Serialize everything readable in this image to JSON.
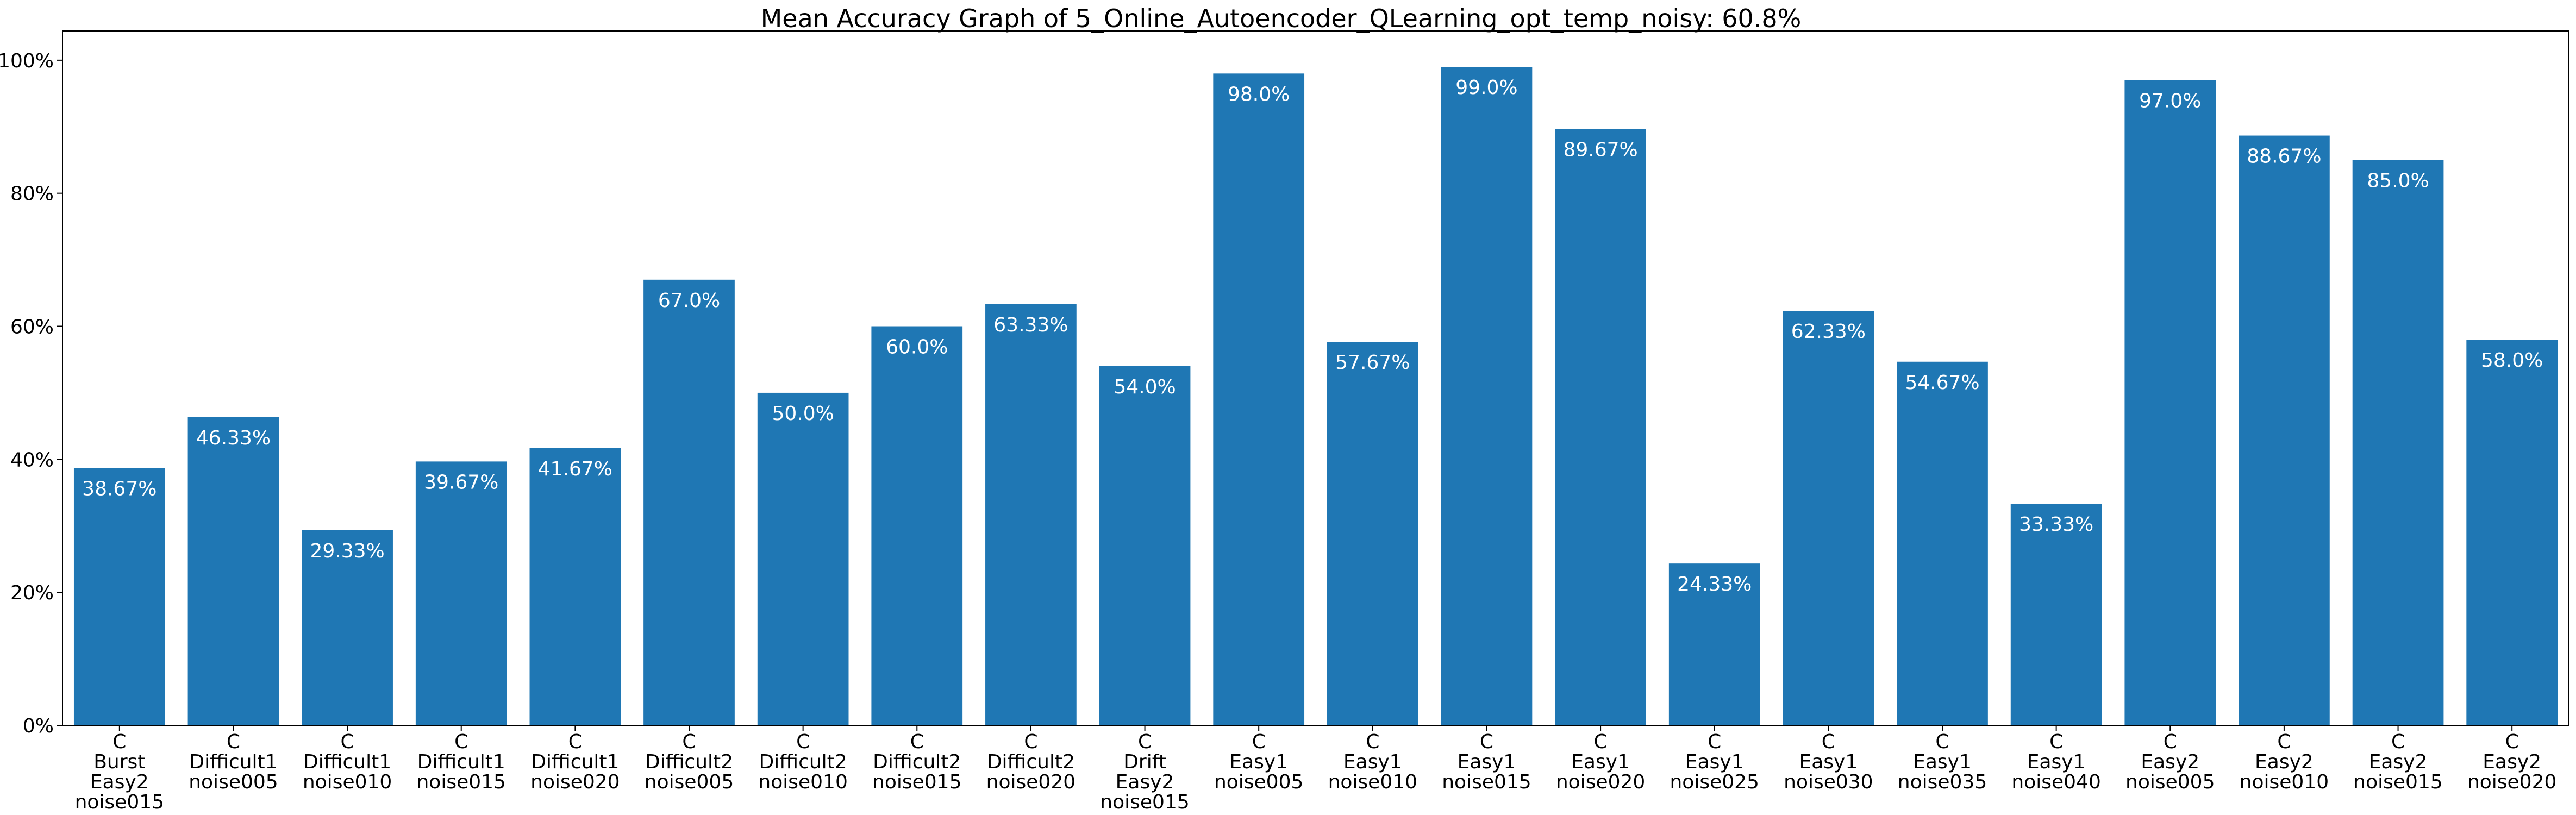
{
  "chart_data": {
    "type": "bar",
    "title": "Mean Accuracy Graph of 5_Online_Autoencoder_QLearning_opt_temp_noisy: 60.8%",
    "xlabel": "",
    "ylabel": "",
    "ylim": [
      0,
      100
    ],
    "y_ticks": [
      "0%",
      "20%",
      "40%",
      "60%",
      "80%",
      "100%"
    ],
    "y_tick_values": [
      0,
      20,
      40,
      60,
      80,
      100
    ],
    "grid": false,
    "bar_color": "#1f77b4",
    "label_color": "#ffffff",
    "categories": [
      "C\nBurst\nEasy2\nnoise015",
      "C\nDifficult1\nnoise005",
      "C\nDifficult1\nnoise010",
      "C\nDifficult1\nnoise015",
      "C\nDifficult1\nnoise020",
      "C\nDifficult2\nnoise005",
      "C\nDifficult2\nnoise010",
      "C\nDifficult2\nnoise015",
      "C\nDifficult2\nnoise020",
      "C\nDrift\nEasy2\nnoise015",
      "C\nEasy1\nnoise005",
      "C\nEasy1\nnoise010",
      "C\nEasy1\nnoise015",
      "C\nEasy1\nnoise020",
      "C\nEasy1\nnoise025",
      "C\nEasy1\nnoise030",
      "C\nEasy1\nnoise035",
      "C\nEasy1\nnoise040",
      "C\nEasy2\nnoise005",
      "C\nEasy2\nnoise010",
      "C\nEasy2\nnoise015",
      "C\nEasy2\nnoise020"
    ],
    "values": [
      38.67,
      46.33,
      29.33,
      39.67,
      41.67,
      67.0,
      50.0,
      60.0,
      63.33,
      54.0,
      98.0,
      57.67,
      99.0,
      89.67,
      24.33,
      62.33,
      54.67,
      33.33,
      97.0,
      88.67,
      85.0,
      58.0
    ],
    "data_labels": [
      "38.67%",
      "46.33%",
      "29.33%",
      "39.67%",
      "41.67%",
      "67.0%",
      "50.0%",
      "60.0%",
      "63.33%",
      "54.0%",
      "98.0%",
      "57.67%",
      "99.0%",
      "89.67%",
      "24.33%",
      "62.33%",
      "54.67%",
      "33.33%",
      "97.0%",
      "88.67%",
      "85.0%",
      "58.0%"
    ]
  }
}
